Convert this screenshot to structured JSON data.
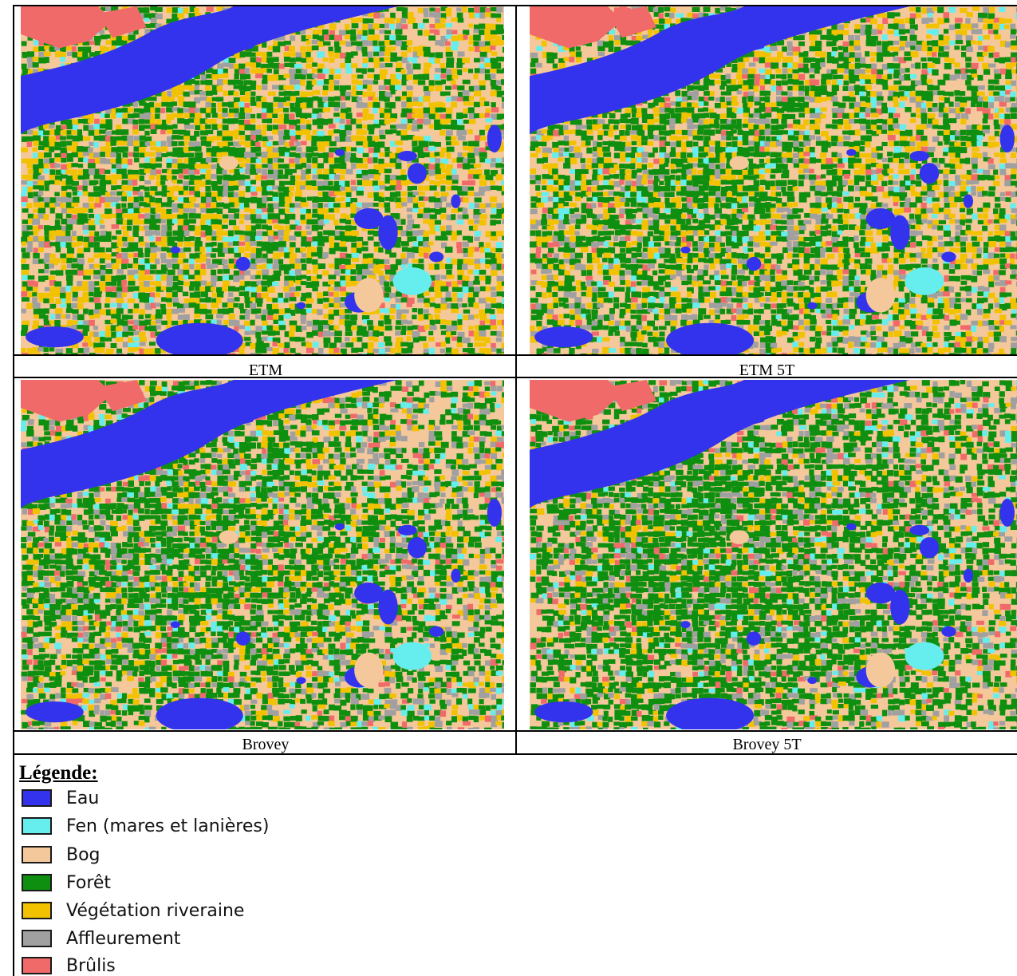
{
  "panels": [
    {
      "caption": "ETM",
      "variant": 0
    },
    {
      "caption": "ETM 5T",
      "variant": 1
    },
    {
      "caption": "Brovey",
      "variant": 2
    },
    {
      "caption": "Brovey 5T",
      "variant": 3
    }
  ],
  "legend": {
    "title": "Légende:",
    "items": [
      {
        "label": "Eau",
        "color": "#3333ee"
      },
      {
        "label": "Fen (mares et lanières)",
        "color": "#66eeee"
      },
      {
        "label": "Bog",
        "color": "#f5c89c"
      },
      {
        "label": "Forêt",
        "color": "#0f8f10"
      },
      {
        "label": "Végétation riveraine",
        "color": "#f2c200"
      },
      {
        "label": "Affleurement",
        "color": "#a0a0a0"
      },
      {
        "label": "Brûlis",
        "color": "#f06a6a"
      }
    ]
  }
}
